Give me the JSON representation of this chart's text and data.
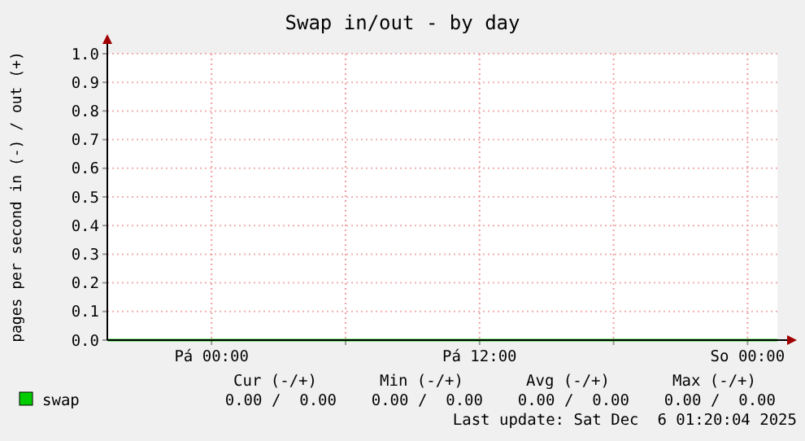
{
  "chart_data": {
    "type": "line",
    "title": "Swap in/out - by day",
    "ylabel": "pages per second in (-) / out (+)",
    "x": [
      "2025-12-04T19:20",
      "2025-12-05T00:00",
      "2025-12-05T06:00",
      "2025-12-05T12:00",
      "2025-12-05T18:00",
      "2025-12-06T00:00",
      "2025-12-06T01:20"
    ],
    "series": [
      {
        "name": "swap",
        "color": "#00cc00",
        "values": [
          0,
          0,
          0,
          0,
          0,
          0,
          0
        ]
      }
    ],
    "xlim": [
      "2025-12-04T19:20",
      "2025-12-06T01:20"
    ],
    "xticks": [
      {
        "value": "2025-12-05T00:00",
        "label": "Pá 00:00"
      },
      {
        "value": "2025-12-05T06:00",
        "label": null
      },
      {
        "value": "2025-12-05T12:00",
        "label": "Pá 12:00"
      },
      {
        "value": "2025-12-05T18:00",
        "label": null
      },
      {
        "value": "2025-12-06T00:00",
        "label": "So 00:00"
      }
    ],
    "ylim": [
      0,
      1
    ],
    "yticks": [
      {
        "value": 0,
        "label": "0.0"
      },
      {
        "value": 0.1,
        "label": "0.1"
      },
      {
        "value": 0.2,
        "label": "0.2"
      },
      {
        "value": 0.3,
        "label": "0.3"
      },
      {
        "value": 0.4,
        "label": "0.4"
      },
      {
        "value": 0.5,
        "label": "0.5"
      },
      {
        "value": 0.6,
        "label": "0.6"
      },
      {
        "value": 0.7,
        "label": "0.7"
      },
      {
        "value": 0.8,
        "label": "0.8"
      },
      {
        "value": 0.9,
        "label": "0.9"
      },
      {
        "value": 1,
        "label": "1.0"
      }
    ],
    "grid": true,
    "legend": "bottom left",
    "marker": "none",
    "line_style": "solid",
    "annotations": [
      "Cur (-/+)",
      "Min (-/+)",
      "Avg (-/+)",
      "Max (-/+)",
      "0.00 /  0.00",
      "0.00 /  0.00",
      "0.00 /  0.00",
      "0.00 /  0.00",
      "Last update: Sat Dec  6 01:20:04 2025"
    ]
  }
}
